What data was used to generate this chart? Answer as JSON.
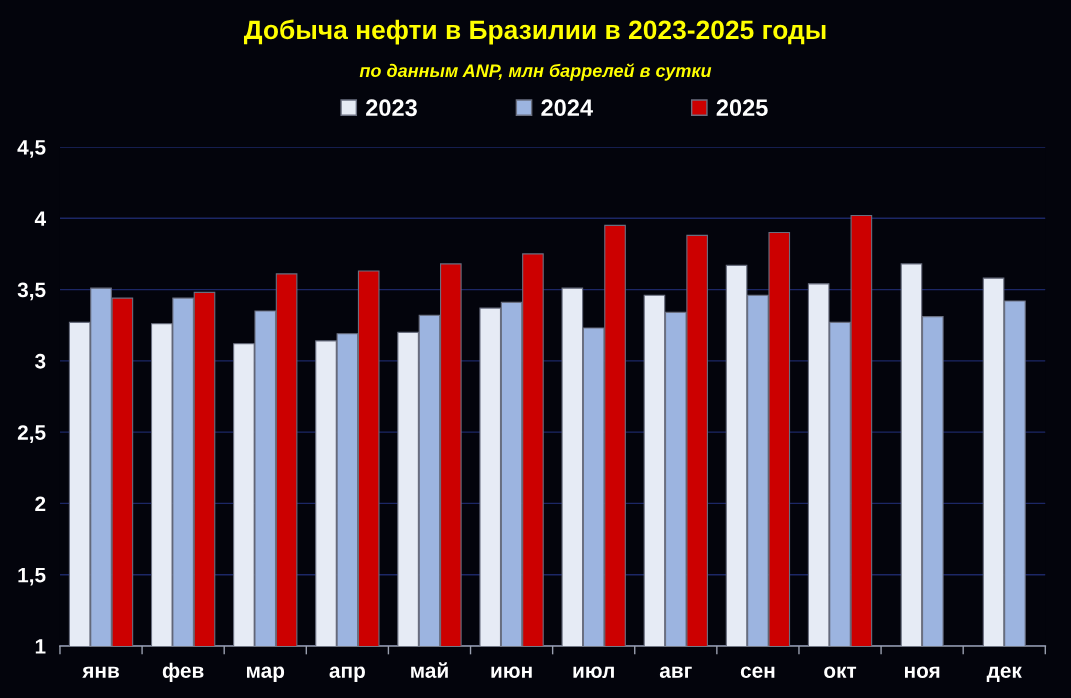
{
  "chart_data": {
    "type": "bar",
    "title": "Добыча нефти в Бразилии в 2023-2025 годы",
    "subtitle": "по данным ANP, млн баррелей в сутки",
    "categories": [
      "янв",
      "фев",
      "мар",
      "апр",
      "май",
      "июн",
      "июл",
      "авг",
      "сен",
      "окт",
      "ноя",
      "дек"
    ],
    "series": [
      {
        "name": "2023",
        "color": "#e6ebf5",
        "values": [
          3.27,
          3.26,
          3.12,
          3.14,
          3.2,
          3.37,
          3.51,
          3.46,
          3.67,
          3.54,
          3.68,
          3.58
        ]
      },
      {
        "name": "2024",
        "color": "#9cb4e0",
        "values": [
          3.51,
          3.44,
          3.35,
          3.19,
          3.32,
          3.41,
          3.23,
          3.34,
          3.46,
          3.27,
          3.31,
          3.42
        ]
      },
      {
        "name": "2025",
        "color": "#cc0000",
        "values": [
          3.44,
          3.48,
          3.61,
          3.63,
          3.68,
          3.75,
          3.95,
          3.88,
          3.9,
          4.02,
          null,
          null
        ]
      }
    ],
    "ylim": [
      1,
      4.5
    ],
    "yticks": [
      1,
      {
        "value": 1.5,
        "label": "1,5"
      },
      2,
      {
        "value": 2.5,
        "label": "2,5"
      },
      3,
      {
        "value": 3.5,
        "label": "3,5"
      },
      4,
      {
        "value": 4.5,
        "label": "4,5"
      }
    ],
    "grid": "y",
    "legend": "top"
  }
}
